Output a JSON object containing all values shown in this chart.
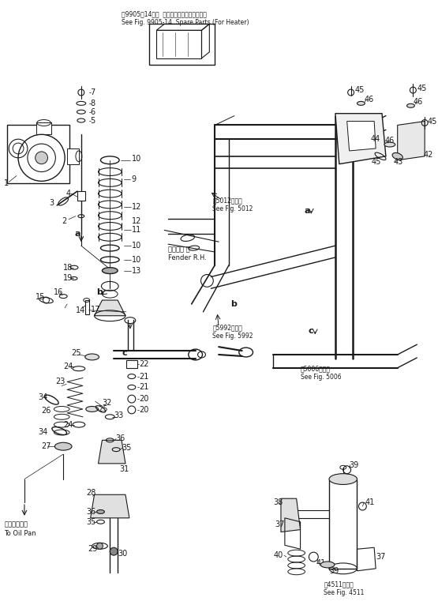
{
  "title_jp": "第9905図14参照  スペアパーツ（ヒータ用）",
  "title_en": "See Fig. 9905-14  Spare Parts (For Heater)",
  "fig5012_jp": "第5012図参照",
  "fig5012_en": "See Fig. 5012",
  "fig5992_jp": "第5992図参照",
  "fig5992_en": "See Fig. 5992",
  "fig5006_jp": "第5006図参照",
  "fig5006_en": "See Fig. 5006",
  "fig4511_jp": "第4511図参照",
  "fig4511_en": "See Fig. 4511",
  "fender_jp": "フェンダ 右",
  "fender_en": "Fender R.H.",
  "oil_pan_jp": "オイルパンへ",
  "oil_pan_en": "To Oil Pan",
  "bg_color": "#ffffff",
  "line_color": "#1a1a1a",
  "gray_color": "#888888"
}
